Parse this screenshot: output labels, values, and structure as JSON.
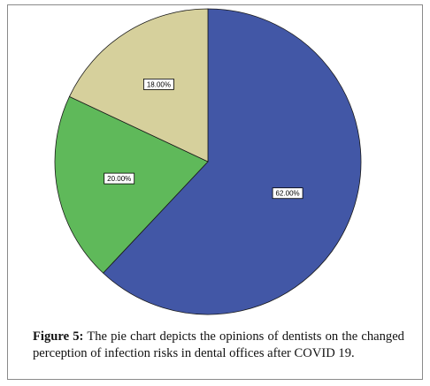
{
  "chart_data": {
    "type": "pie",
    "title": "",
    "start_angle_deg": 0,
    "direction": "clockwise",
    "slices": [
      {
        "label": "62.00%",
        "value": 62.0,
        "color": "#4257a6"
      },
      {
        "label": "20.00%",
        "value": 20.0,
        "color": "#5fb95a"
      },
      {
        "label": "18.00%",
        "value": 18.0,
        "color": "#d6d09c"
      }
    ],
    "slice_edge_color": "#1a1a1a",
    "label_box_fill": "#ffffff",
    "label_box_stroke": "#000000"
  },
  "caption": {
    "label": "Figure 5:",
    "text": " The pie chart depicts the opinions of dentists on the changed perception of infection risks in dental offices after COVID 19."
  }
}
